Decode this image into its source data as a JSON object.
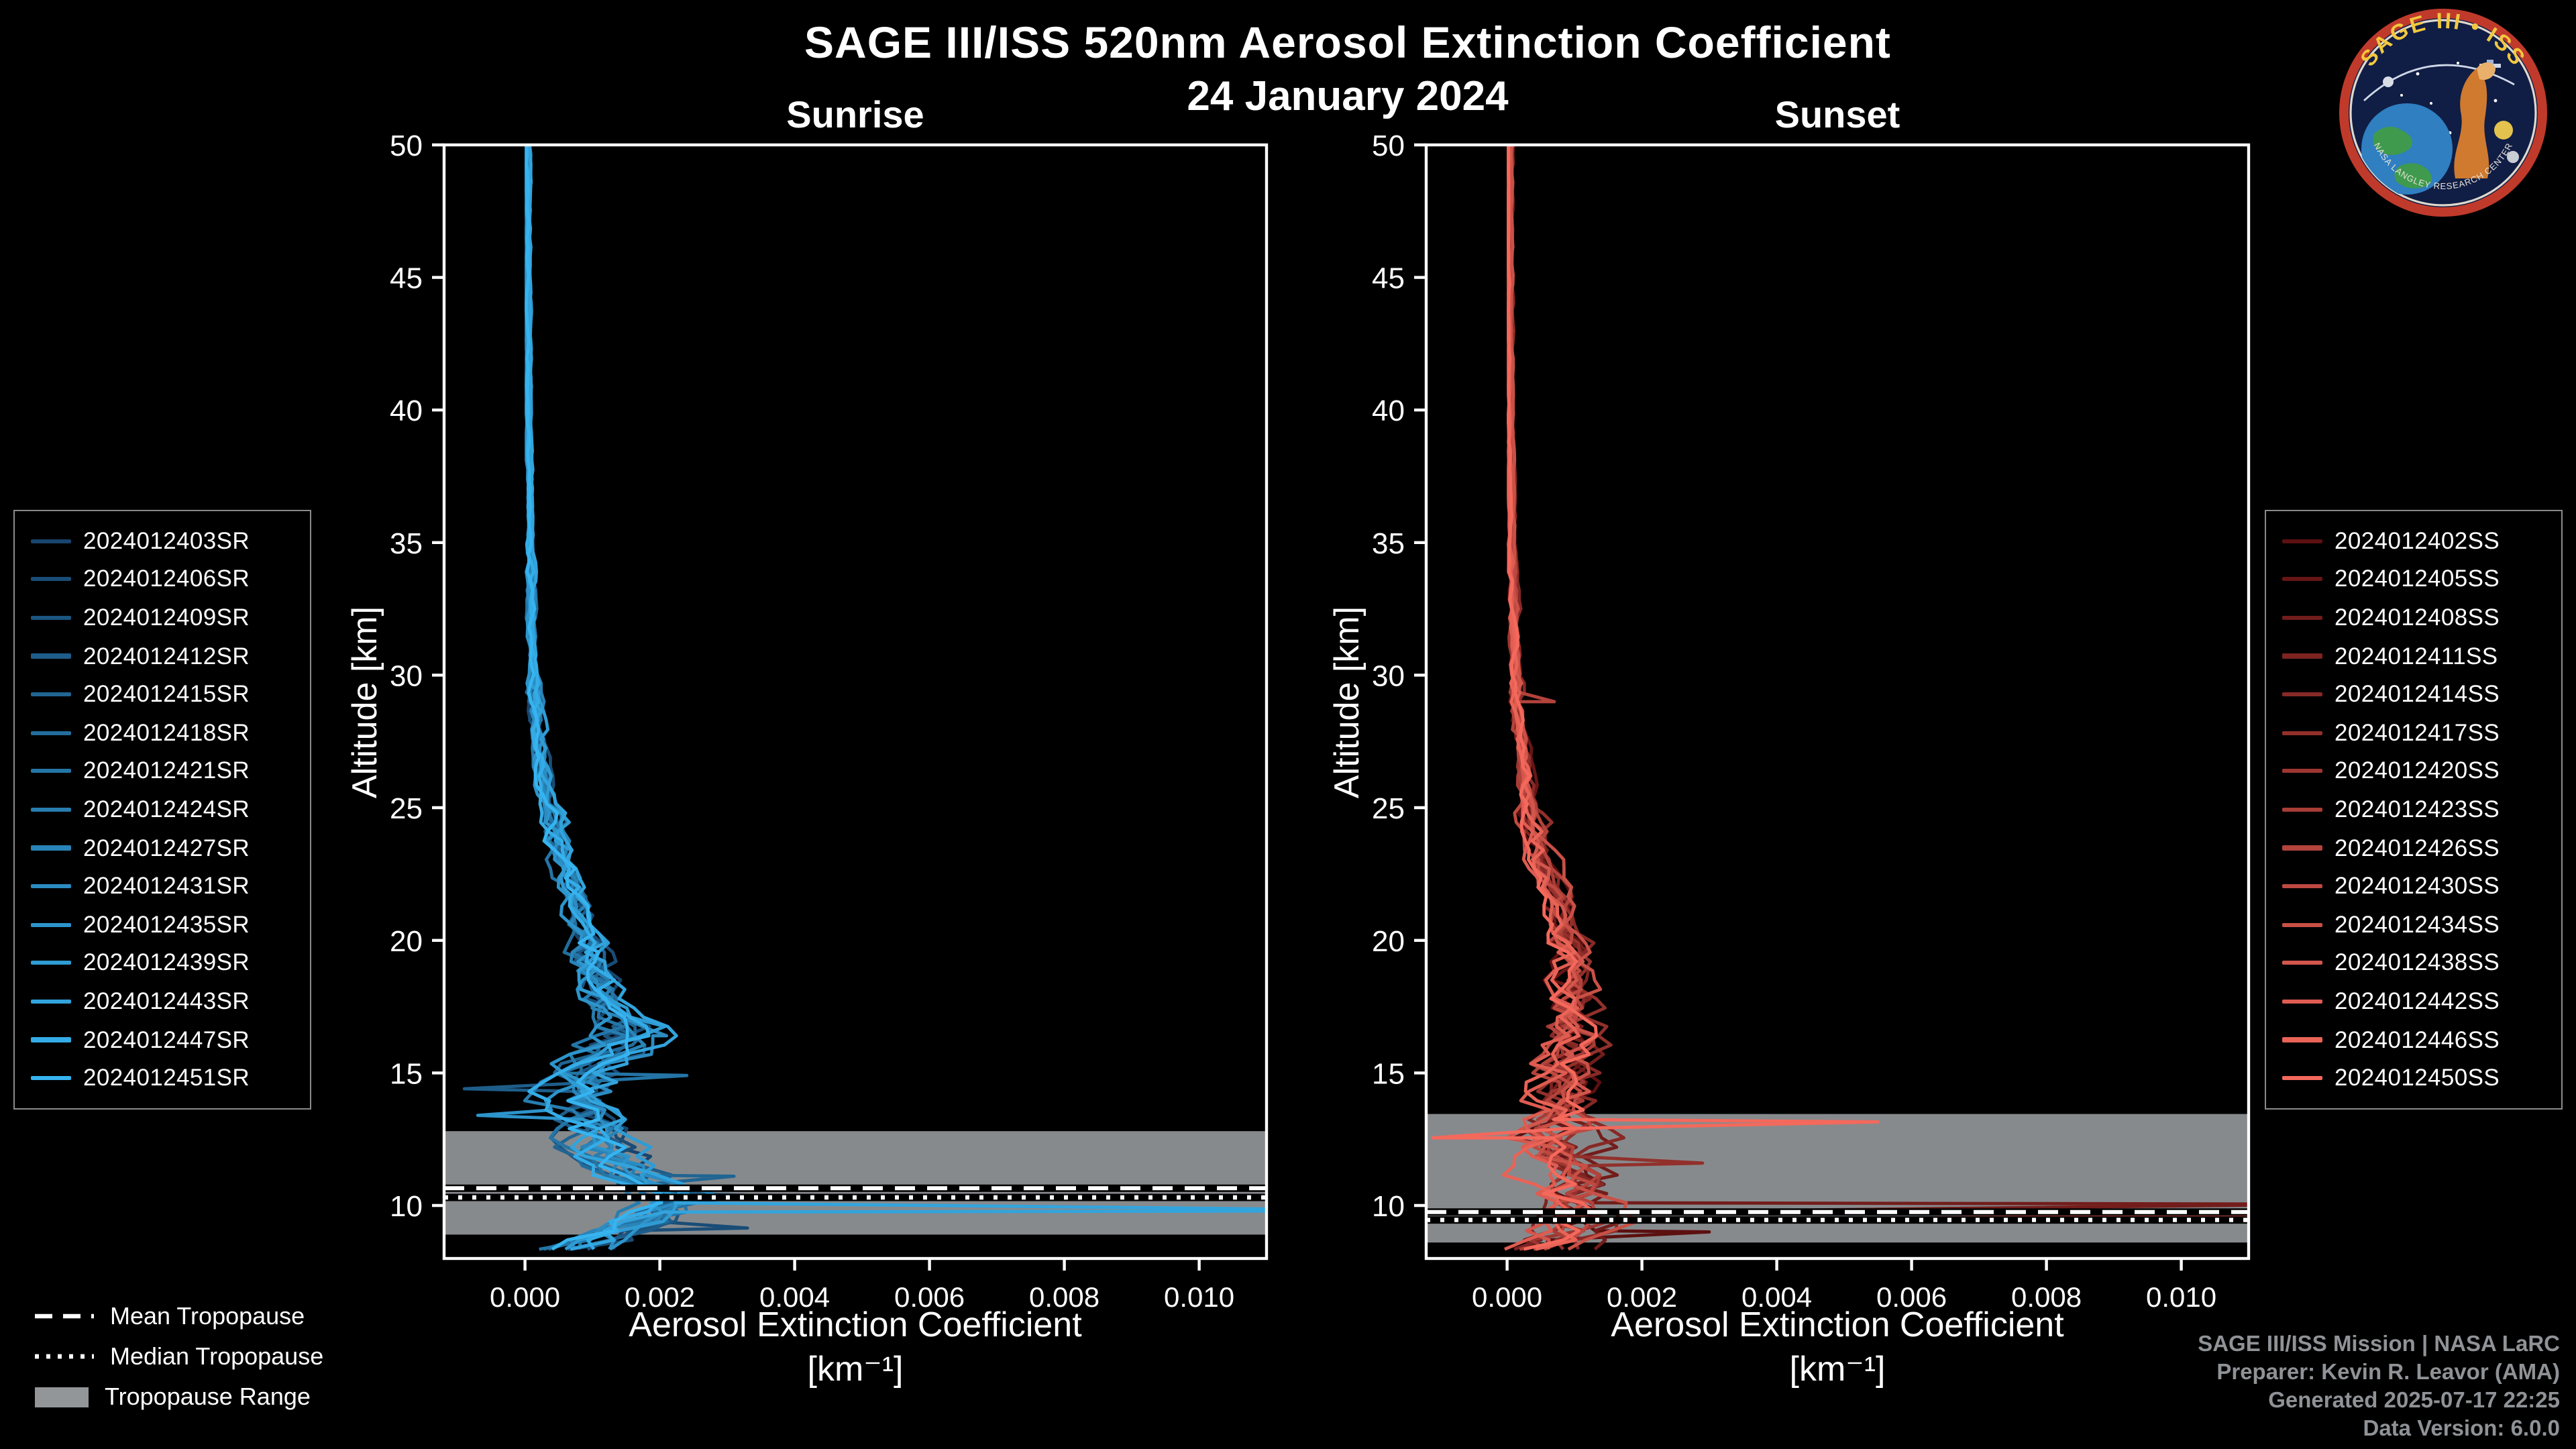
{
  "chart_data": {
    "type": "line",
    "title": "SAGE III/ISS 520nm Aerosol Extinction Coefficient",
    "subtitle": "24 January 2024",
    "xlabel": "Aerosol Extinction Coefficient",
    "xlabel_units": "[km⁻¹]",
    "ylabel": "Altitude [km]",
    "xlim": [
      -0.0012,
      0.011
    ],
    "ylim": [
      8,
      50
    ],
    "xticks": [
      0,
      0.002,
      0.004,
      0.006,
      0.008,
      0.01
    ],
    "xtick_labels": [
      "0.000",
      "0.002",
      "0.004",
      "0.006",
      "0.008",
      "0.010"
    ],
    "yticks": [
      10,
      15,
      20,
      25,
      30,
      35,
      40,
      45,
      50
    ],
    "grid": false,
    "legend_position": "outside",
    "panels": [
      {
        "id": "sunrise",
        "title": "Sunrise",
        "series": [
          "2024012403SR",
          "2024012406SR",
          "2024012409SR",
          "2024012412SR",
          "2024012415SR",
          "2024012418SR",
          "2024012421SR",
          "2024012424SR",
          "2024012427SR",
          "2024012431SR",
          "2024012435SR",
          "2024012439SR",
          "2024012443SR",
          "2024012447SR",
          "2024012451SR"
        ],
        "color_start": "#17456e",
        "color_end": "#36b4f0",
        "tropopause": {
          "mean_km": 10.65,
          "median_km": 10.3,
          "range_km": [
            8.9,
            12.8
          ]
        },
        "profile": {
          "altitude_km": [
            8.3,
            8.5,
            9,
            9.5,
            10,
            10.5,
            11,
            11.5,
            12,
            12.5,
            13,
            13.5,
            14,
            14.5,
            15,
            15.5,
            16,
            16.5,
            17,
            18,
            19,
            20,
            21,
            22,
            23,
            24,
            25,
            26,
            28,
            30,
            32,
            35,
            40,
            45,
            50
          ],
          "extinction_per_km": [
            0.0006,
            0.0008,
            0.0012,
            0.0018,
            0.0022,
            0.002,
            0.0017,
            0.0014,
            0.0012,
            0.001,
            0.0009,
            0.0008,
            0.0007,
            0.0008,
            0.0009,
            0.0011,
            0.0013,
            0.0015,
            0.0013,
            0.0011,
            0.00095,
            0.0009,
            0.0008,
            0.0007,
            0.00055,
            0.00045,
            0.00035,
            0.00028,
            0.00018,
            0.00012,
            0.0001,
            8e-05,
            5e-05,
            4e-05,
            4e-05
          ]
        },
        "spikes": [
          {
            "series_index": 12,
            "altitude_km": 9.8,
            "extinction_per_km": 0.0135
          },
          {
            "series_index": 2,
            "altitude_km": 10.35,
            "extinction_per_km": 0.0038
          },
          {
            "series_index": 4,
            "altitude_km": 11.1,
            "extinction_per_km": 0.0031
          },
          {
            "series_index": 1,
            "altitude_km": 9.15,
            "extinction_per_km": 0.0033
          },
          {
            "series_index": 6,
            "altitude_km": 14.9,
            "extinction_per_km": 0.0024
          },
          {
            "series_index": 9,
            "altitude_km": 16.4,
            "extinction_per_km": 0.0021
          },
          {
            "series_index": 3,
            "altitude_km": 14.4,
            "extinction_per_km": -0.0009
          },
          {
            "series_index": 10,
            "altitude_km": 13.4,
            "extinction_per_km": -0.0007
          }
        ]
      },
      {
        "id": "sunset",
        "title": "Sunset",
        "series": [
          "2024012402SS",
          "2024012405SS",
          "2024012408SS",
          "2024012411SS",
          "2024012414SS",
          "2024012417SS",
          "2024012420SS",
          "2024012423SS",
          "2024012426SS",
          "2024012430SS",
          "2024012434SS",
          "2024012438SS",
          "2024012442SS",
          "2024012446SS",
          "2024012450SS"
        ],
        "color_start": "#5c1010",
        "color_end": "#f4695c",
        "tropopause": {
          "mean_km": 9.75,
          "median_km": 9.45,
          "range_km": [
            8.6,
            13.45
          ]
        },
        "profile": {
          "altitude_km": [
            8.3,
            8.5,
            9,
            9.5,
            10,
            10.5,
            11,
            11.5,
            12,
            12.5,
            13,
            13.5,
            14,
            15,
            16,
            17,
            18,
            19,
            20,
            21,
            22,
            23,
            24,
            25,
            26,
            28,
            30,
            32,
            35,
            40,
            45,
            50
          ],
          "extinction_per_km": [
            0.0005,
            0.0007,
            0.001,
            0.0012,
            0.0011,
            0.001,
            0.0009,
            0.00085,
            0.0008,
            0.0008,
            0.0008,
            0.00085,
            0.0009,
            0.00095,
            0.001,
            0.001,
            0.00095,
            0.0009,
            0.00085,
            0.0008,
            0.0007,
            0.00055,
            0.00045,
            0.00035,
            0.00028,
            0.00018,
            0.00012,
            0.0001,
            8e-05,
            5e-05,
            4e-05,
            4e-05
          ]
        },
        "spikes": [
          {
            "series_index": 14,
            "altitude_km": 13.15,
            "extinction_per_km": 0.0055
          },
          {
            "series_index": 14,
            "altitude_km": 12.55,
            "extinction_per_km": -0.0011
          },
          {
            "series_index": 12,
            "altitude_km": 9.7,
            "extinction_per_km": 0.014
          },
          {
            "series_index": 2,
            "altitude_km": 10.05,
            "extinction_per_km": 0.0125
          },
          {
            "series_index": 5,
            "altitude_km": 11.6,
            "extinction_per_km": 0.0029
          },
          {
            "series_index": 0,
            "altitude_km": 9.0,
            "extinction_per_km": 0.003
          },
          {
            "series_index": 8,
            "altitude_km": 29.0,
            "extinction_per_km": 0.0007
          }
        ]
      }
    ],
    "tropopause_legend": [
      {
        "label": "Mean Tropopause",
        "style": "dashed"
      },
      {
        "label": "Median Tropopause",
        "style": "dotted"
      },
      {
        "label": "Tropopause Range",
        "style": "band"
      }
    ]
  },
  "footer": {
    "lines": [
      "SAGE III/ISS Mission | NASA LaRC",
      "Preparer: Kevin R. Leavor (AMA)",
      "Generated 2025-07-17 22:25",
      "Data Version: 6.0.0"
    ]
  },
  "logo": {
    "title_arc": "SAGE III • ISS",
    "bottom_arc": "NASA LANGLEY RESEARCH CENTER"
  }
}
